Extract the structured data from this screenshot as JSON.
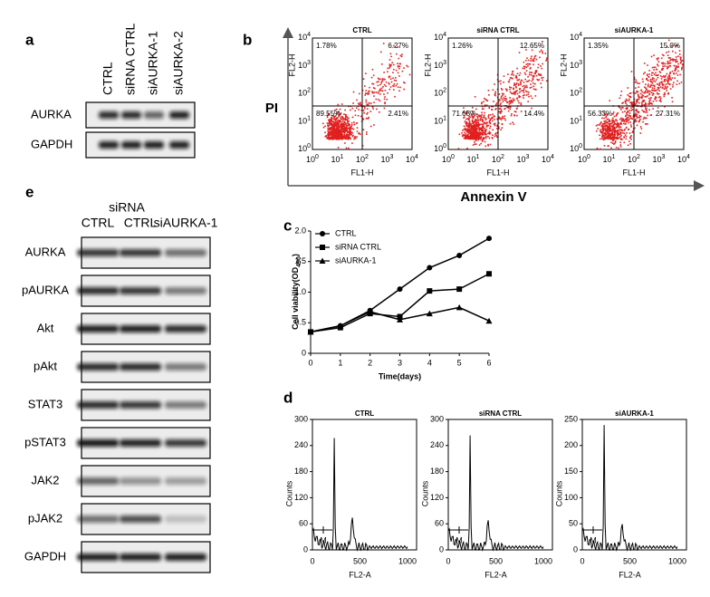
{
  "panel_a": {
    "label": "a",
    "lanes": [
      "CTRL",
      "siRNA CTRL",
      "siAURKA-1",
      "siAURKA-2"
    ],
    "rows": [
      "AURKA",
      "GAPDH"
    ]
  },
  "panel_b": {
    "label": "b",
    "y_label": "PI",
    "x_label": "Annexin V",
    "tick_base": "10",
    "tick_exponents": [
      "0",
      "1",
      "2",
      "3",
      "4"
    ],
    "plots": [
      {
        "title": "CTRL",
        "x_axis": "FL1-H",
        "y_axis": "FL2-H",
        "quadrants": [
          "1.78%",
          "6.27%",
          "89.55%",
          "2.41%"
        ]
      },
      {
        "title": "siRNA CTRL",
        "x_axis": "FL1-H",
        "y_axis": "FL2-H",
        "quadrants": [
          "1.26%",
          "12.65%",
          "71.68%",
          "14.4%"
        ]
      },
      {
        "title": "siAURKA-1",
        "x_axis": "FL1-H",
        "y_axis": "FL2-H",
        "quadrants": [
          "1.35%",
          "15.0%",
          "56.33%",
          "27.31%"
        ]
      }
    ]
  },
  "chart_data": {
    "type": "line",
    "label": "c",
    "x_label": "Time(days)",
    "y_label": "Cell viability(OD",
    "y_label_sub": "490",
    "y_label_end": ")",
    "x": [
      0,
      1,
      2,
      3,
      4,
      5,
      6
    ],
    "xlim": [
      0,
      6
    ],
    "xticks": [
      0,
      1,
      2,
      3,
      4,
      5,
      6
    ],
    "ylim": [
      0,
      2.0
    ],
    "yticks": [
      0,
      0.5,
      {
        "value": 1.0,
        "label": "1.0"
      },
      1.5,
      {
        "value": 2.0,
        "label": "2.0"
      }
    ],
    "series": [
      {
        "name": "CTRL",
        "color": "#000000",
        "marker": "circle",
        "values": [
          0.35,
          0.45,
          0.7,
          1.05,
          1.4,
          1.6,
          1.88
        ]
      },
      {
        "name": "siRNA CTRL",
        "color": "#000000",
        "marker": "square",
        "values": [
          0.35,
          0.42,
          0.65,
          0.6,
          1.02,
          1.05,
          1.3
        ]
      },
      {
        "name": "siAURKA-1",
        "color": "#000000",
        "marker": "triangle",
        "values": [
          0.35,
          0.45,
          0.68,
          0.55,
          0.65,
          0.75,
          0.53
        ]
      }
    ]
  },
  "panel_d": {
    "label": "d",
    "y_axis": "Counts",
    "x_axis": "FL2-A",
    "marker": "M",
    "xticks": [
      0,
      500,
      1000
    ],
    "plots": [
      {
        "title": "CTRL",
        "yticks": [
          0,
          60,
          120,
          180,
          240,
          300
        ]
      },
      {
        "title": "siRNA CTRL",
        "yticks": [
          0,
          60,
          120,
          180,
          240,
          300
        ]
      },
      {
        "title": "siAURKA-1",
        "yticks": [
          0,
          50,
          100,
          150,
          200,
          250
        ]
      }
    ]
  },
  "panel_e": {
    "label": "e",
    "group": "siRNA",
    "lanes": [
      "CTRL",
      "CTRL",
      "siAURKA-1"
    ],
    "rows": [
      "AURKA",
      "pAURKA",
      "Akt",
      "pAkt",
      "STAT3",
      "pSTAT3",
      "JAK2",
      "pJAK2",
      "GAPDH"
    ]
  }
}
